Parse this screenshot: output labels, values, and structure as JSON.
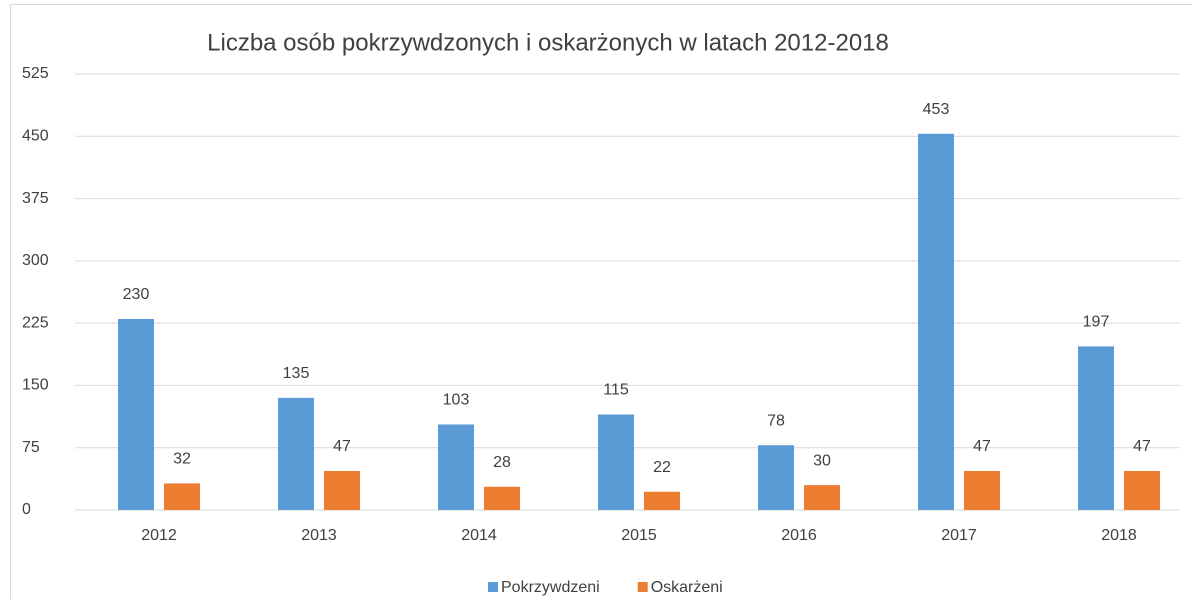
{
  "chart_data": {
    "type": "bar",
    "title": "Liczba osób pokrzywdzonych i oskarżonych  w latach 2012-2018",
    "categories": [
      "2012",
      "2013",
      "2014",
      "2015",
      "2016",
      "2017",
      "2018"
    ],
    "series": [
      {
        "name": "Pokrzywdzeni",
        "color": "#5b9bd5",
        "values": [
          230,
          135,
          103,
          115,
          78,
          453,
          197
        ]
      },
      {
        "name": "Oskarżeni",
        "color": "#ed7d31",
        "values": [
          32,
          47,
          28,
          22,
          30,
          47,
          47
        ]
      }
    ],
    "ylim": [
      0,
      525
    ],
    "yticks": [
      0,
      75,
      150,
      225,
      300,
      375,
      450,
      525
    ],
    "grid": true,
    "legend": "bottom"
  }
}
